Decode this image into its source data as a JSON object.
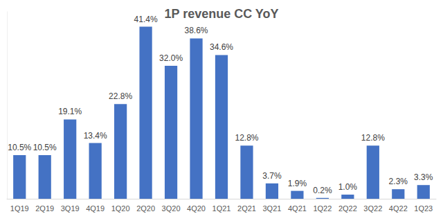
{
  "chart_data": {
    "type": "bar",
    "title": "1P revenue CC YoY",
    "categories": [
      "1Q19",
      "2Q19",
      "3Q19",
      "4Q19",
      "1Q20",
      "2Q20",
      "3Q20",
      "4Q20",
      "1Q21",
      "2Q21",
      "3Q21",
      "4Q21",
      "1Q22",
      "2Q22",
      "3Q22",
      "4Q22",
      "1Q23"
    ],
    "values": [
      10.5,
      10.5,
      19.1,
      13.4,
      22.8,
      41.4,
      32.0,
      38.6,
      34.6,
      12.8,
      3.7,
      1.9,
      0.2,
      1.0,
      12.8,
      2.3,
      3.3
    ],
    "value_labels": [
      "10.5%",
      "10.5%",
      "19.1%",
      "13.4%",
      "22.8%",
      "41.4%",
      "32.0%",
      "38.6%",
      "34.6%",
      "12.8%",
      "3.7%",
      "1.9%",
      "0.2%",
      "1.0%",
      "12.8%",
      "2.3%",
      "3.3%"
    ],
    "color": "#4472c4",
    "ylim": [
      0,
      45
    ],
    "grid": false,
    "data_labels": true,
    "tick_labels": "x"
  }
}
